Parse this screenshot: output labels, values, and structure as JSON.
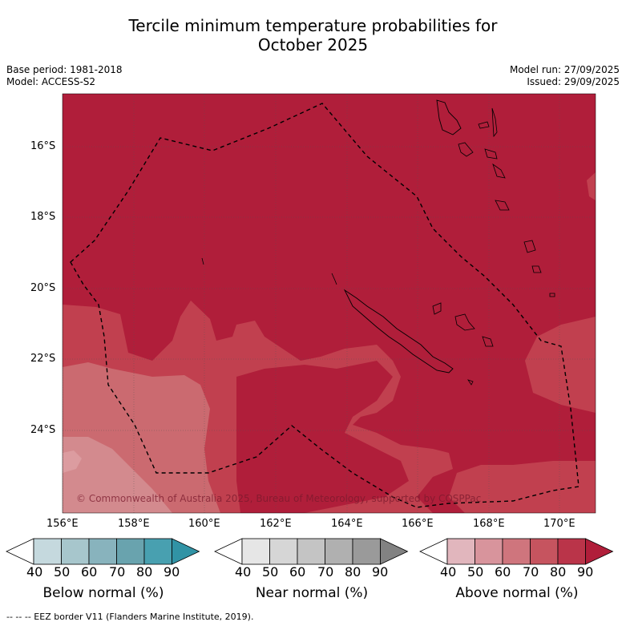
{
  "title_line1": "Tercile minimum temperature probabilities for",
  "title_line2": "October 2025",
  "base_period": "Base period: 1981-2018",
  "model": "Model: ACCESS-S2",
  "model_run": "Model run: 27/09/2025",
  "issued": "Issued: 29/09/2025",
  "lat_labels": [
    "16°S",
    "18°S",
    "20°S",
    "22°S",
    "24°S"
  ],
  "lon_labels": [
    "156°E",
    "158°E",
    "160°E",
    "162°E",
    "164°E",
    "166°E",
    "168°E",
    "170°E"
  ],
  "copyright": "© Commonwealth of Australia 2025, Bureau of Meteorology, supported by COSPPac",
  "colorbars": [
    {
      "label": "Below normal (%)",
      "ticks": [
        "40",
        "50",
        "60",
        "70",
        "80",
        "90"
      ],
      "colors": [
        "#c5d9de",
        "#a7c6cc",
        "#88b3bd",
        "#69a3ae",
        "#48a0b0",
        "#3193a5"
      ]
    },
    {
      "label": "Near normal (%)",
      "ticks": [
        "40",
        "50",
        "60",
        "70",
        "80",
        "90"
      ],
      "colors": [
        "#e6e6e6",
        "#d6d6d6",
        "#c4c4c4",
        "#b0b0b0",
        "#9a9a9a",
        "#828282"
      ]
    },
    {
      "label": "Above normal (%)",
      "ticks": [
        "40",
        "50",
        "60",
        "70",
        "80",
        "90"
      ],
      "colors": [
        "#e1b6bd",
        "#d8949c",
        "#cf757d",
        "#c6545f",
        "#ba3449",
        "#b01e3a"
      ]
    }
  ],
  "footer": "--  --  -- EEZ border V11 (Flanders Marine Institute, 2019).",
  "map_colors": {
    "above_80": "#b01e3a",
    "above_70": "#c1404f",
    "above_60": "#cb6a70",
    "above_50": "#d38a8e"
  }
}
